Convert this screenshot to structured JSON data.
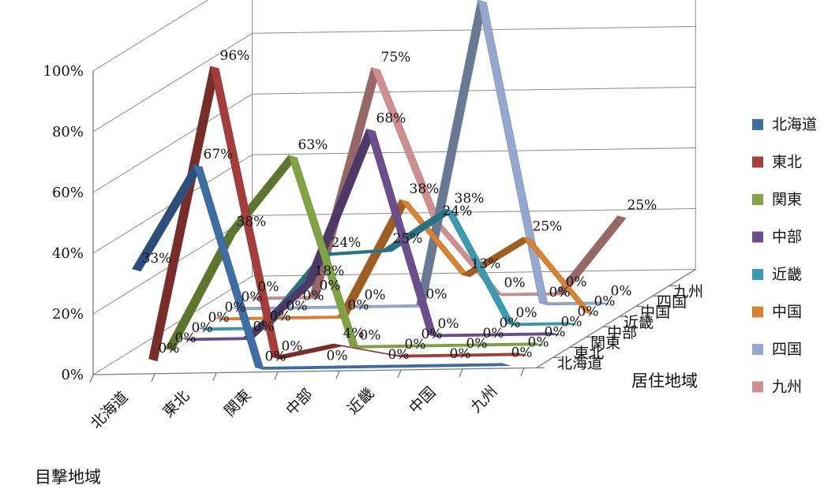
{
  "chart_data": {
    "type": "line",
    "subtype": "3d-ribbon",
    "title": "",
    "xlabel": "目撃地域",
    "zlabel": "居住地域",
    "ylabel": "",
    "ylim": [
      0,
      100
    ],
    "yticks": [
      "0%",
      "20%",
      "40%",
      "60%",
      "80%",
      "100%"
    ],
    "categories": [
      "北海道",
      "東北",
      "関東",
      "中部",
      "近畿",
      "中国",
      "九州"
    ],
    "depth_labels": [
      "北海道",
      "東北",
      "関東",
      "中部",
      "近畿",
      "中国",
      "四国",
      "九州"
    ],
    "legend_position": "right",
    "series": [
      {
        "name": "北海道",
        "color": "#3E6DA6",
        "values": [
          33,
          67,
          0,
          0,
          0,
          0,
          0
        ],
        "labels": [
          "33%",
          "67%",
          "0%",
          "0%",
          "0%",
          "0%",
          "0%"
        ]
      },
      {
        "name": "東北",
        "color": "#A53E3B",
        "values": [
          0,
          96,
          0,
          4,
          0,
          0,
          0
        ],
        "labels": [
          "0%",
          "96%",
          "0%",
          "4%",
          "0%",
          "0%",
          "0%"
        ]
      },
      {
        "name": "関東",
        "color": "#82A343",
        "values": [
          0,
          38,
          63,
          0,
          0,
          0,
          0
        ],
        "labels": [
          "0%",
          "38%",
          "63%",
          "0%",
          "0%",
          "0%",
          "0%"
        ]
      },
      {
        "name": "中部",
        "color": "#6A4F8C",
        "values": [
          0,
          0,
          18,
          68,
          0,
          0,
          0
        ],
        "labels": [
          "0%",
          "0%",
          "18%",
          "68%",
          "0%",
          "0%",
          "0%"
        ]
      },
      {
        "name": "近畿",
        "color": "#3A9BB0",
        "values": [
          0,
          0,
          24,
          25,
          38,
          0,
          0
        ],
        "labels": [
          "0%",
          "0%",
          "24%",
          "25%",
          "38%",
          "0%",
          "0%"
        ]
      },
      {
        "name": "中国",
        "color": "#DA8230",
        "values": [
          0,
          0,
          0,
          38,
          13,
          25,
          0
        ],
        "labels": [
          "0%",
          "0%",
          "0%",
          "38%",
          "13%",
          "25%",
          "0%"
        ]
      },
      {
        "name": "四国",
        "color": "#93A8CC",
        "values": [
          0,
          0,
          0,
          0,
          100,
          0,
          0
        ],
        "labels": [
          "0%",
          "0%",
          "0%",
          "0%",
          "100%",
          "0%",
          "0%"
        ]
      },
      {
        "name": "九州",
        "color": "#CF8F8F",
        "values": [
          0,
          0,
          75,
          24,
          0,
          0,
          25
        ],
        "labels": [
          "0%",
          "0%",
          "75%",
          "24%",
          "0%",
          "0%",
          "25%"
        ]
      }
    ]
  }
}
